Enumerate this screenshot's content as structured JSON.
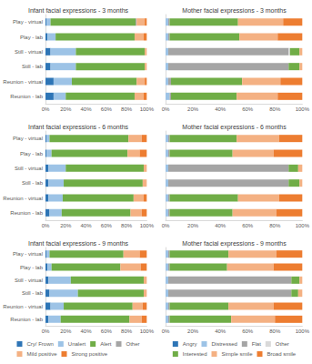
{
  "chart_data": [
    {
      "type": "bar",
      "title": "Infant facial expressions - 3 months",
      "orientation": "horizontal",
      "stacked": true,
      "grid": false,
      "categories": [
        "Play - virtual",
        "Play - lab",
        "Still - virtual",
        "Still - lab",
        "Reunion - virtual",
        "Reunion - lab"
      ],
      "xlim": [
        0,
        100
      ],
      "xticks": [
        {
          "value": 0,
          "label": "0%"
        },
        {
          "value": 20,
          "label": "20%"
        },
        {
          "value": 40,
          "label": "40%"
        },
        {
          "value": 60,
          "label": "60%"
        },
        {
          "value": 80,
          "label": "80%"
        },
        {
          "value": 100,
          "label": "100%"
        }
      ],
      "series": [
        {
          "name": "Cry/ Frown",
          "color": "#2e75b6",
          "values": [
            1,
            2,
            5,
            5,
            8,
            8
          ]
        },
        {
          "name": "Unalert",
          "color": "#9dc3e6",
          "values": [
            4,
            8,
            25,
            25,
            18,
            12
          ]
        },
        {
          "name": "Alert",
          "color": "#70ad47",
          "values": [
            84,
            78,
            68,
            68,
            64,
            68
          ]
        },
        {
          "name": "Other",
          "color": "#a5a5a5",
          "values": [
            1,
            0,
            0,
            0,
            0,
            0
          ]
        },
        {
          "name": "Mild positive",
          "color": "#f4b183",
          "values": [
            8,
            9,
            2,
            2,
            8,
            9
          ]
        },
        {
          "name": "Strong positive",
          "color": "#ed7d31",
          "values": [
            2,
            3,
            0,
            0,
            2,
            3
          ]
        }
      ]
    },
    {
      "type": "bar",
      "title": "Mother facial expressions - 3 months",
      "orientation": "horizontal",
      "stacked": true,
      "grid": false,
      "tick_labels": "x",
      "categories": [
        "Play - virtual",
        "Play - lab",
        "Still - virtual",
        "Still - lab",
        "Reunion - virtual",
        "Reunion - lab"
      ],
      "xlim": [
        0,
        100
      ],
      "xticks": [
        {
          "value": 0,
          "label": "0%"
        },
        {
          "value": 20,
          "label": "20%"
        },
        {
          "value": 40,
          "label": "40%"
        },
        {
          "value": 60,
          "label": "60%"
        },
        {
          "value": 80,
          "label": "80%"
        },
        {
          "value": 100,
          "label": "100%"
        }
      ],
      "series": [
        {
          "name": "Angry",
          "color": "#2e75b6",
          "values": [
            0,
            0,
            0,
            0,
            0,
            0
          ]
        },
        {
          "name": "Distressed",
          "color": "#9dc3e6",
          "values": [
            2,
            2,
            2,
            2,
            2,
            3
          ]
        },
        {
          "name": "Flat",
          "color": "#a5a5a5",
          "values": [
            1,
            1,
            88,
            88,
            2,
            1
          ]
        },
        {
          "name": "Other",
          "color": "#d9d9d9",
          "values": [
            0,
            0,
            1,
            0,
            0,
            0
          ]
        },
        {
          "name": "Interested",
          "color": "#70ad47",
          "values": [
            50,
            51,
            7,
            8,
            52,
            48
          ]
        },
        {
          "name": "Simple smile",
          "color": "#f4b183",
          "values": [
            33,
            28,
            2,
            2,
            28,
            30
          ]
        },
        {
          "name": "Broad smile",
          "color": "#ed7d31",
          "values": [
            14,
            18,
            0,
            0,
            16,
            18
          ]
        }
      ]
    },
    {
      "type": "bar",
      "title": "Infant facial expressions - 6 months",
      "orientation": "horizontal",
      "stacked": true,
      "grid": false,
      "categories": [
        "Play - virtual",
        "Play - lab",
        "Still - virtual",
        "Still - lab",
        "Reunion - virtual",
        "Reunion - lab"
      ],
      "xlim": [
        0,
        100
      ],
      "xticks": [
        {
          "value": 0,
          "label": "0%"
        },
        {
          "value": 20,
          "label": "20%"
        },
        {
          "value": 40,
          "label": "40%"
        },
        {
          "value": 60,
          "label": "60%"
        },
        {
          "value": 80,
          "label": "80%"
        },
        {
          "value": 100,
          "label": "100%"
        }
      ],
      "series": [
        {
          "name": "Cry/ Frown",
          "color": "#2e75b6",
          "values": [
            1,
            1,
            3,
            3,
            3,
            4
          ]
        },
        {
          "name": "Unalert",
          "color": "#9dc3e6",
          "values": [
            3,
            5,
            17,
            15,
            14,
            12
          ]
        },
        {
          "name": "Alert",
          "color": "#70ad47",
          "values": [
            78,
            75,
            77,
            78,
            70,
            68
          ]
        },
        {
          "name": "Other",
          "color": "#a5a5a5",
          "values": [
            0,
            0,
            0,
            0,
            0,
            0
          ]
        },
        {
          "name": "Mild positive",
          "color": "#f4b183",
          "values": [
            13,
            12,
            3,
            4,
            10,
            11
          ]
        },
        {
          "name": "Strong positive",
          "color": "#ed7d31",
          "values": [
            5,
            7,
            0,
            0,
            3,
            5
          ]
        }
      ]
    },
    {
      "type": "bar",
      "title": "Mother facial expressions - 6 months",
      "orientation": "horizontal",
      "stacked": true,
      "grid": false,
      "tick_labels": "x",
      "categories": [
        "Play - virtual",
        "Play - lab",
        "Still - virtual",
        "Still - lab",
        "Reunion - virtual",
        "Reunion - lab"
      ],
      "xlim": [
        0,
        100
      ],
      "xticks": [
        {
          "value": 0,
          "label": "0%"
        },
        {
          "value": 20,
          "label": "20%"
        },
        {
          "value": 40,
          "label": "40%"
        },
        {
          "value": 60,
          "label": "60%"
        },
        {
          "value": 80,
          "label": "80%"
        },
        {
          "value": 100,
          "label": "100%"
        }
      ],
      "series": [
        {
          "name": "Angry",
          "color": "#2e75b6",
          "values": [
            0,
            0,
            0,
            0,
            0,
            0
          ]
        },
        {
          "name": "Distressed",
          "color": "#9dc3e6",
          "values": [
            2,
            2,
            2,
            2,
            2,
            2
          ]
        },
        {
          "name": "Flat",
          "color": "#a5a5a5",
          "values": [
            1,
            1,
            88,
            88,
            1,
            1
          ]
        },
        {
          "name": "Other",
          "color": "#d9d9d9",
          "values": [
            0,
            0,
            0,
            0,
            0,
            0
          ]
        },
        {
          "name": "Interested",
          "color": "#70ad47",
          "values": [
            49,
            46,
            7,
            8,
            50,
            46
          ]
        },
        {
          "name": "Simple smile",
          "color": "#f4b183",
          "values": [
            31,
            30,
            3,
            2,
            30,
            32
          ]
        },
        {
          "name": "Broad smile",
          "color": "#ed7d31",
          "values": [
            17,
            21,
            0,
            0,
            17,
            19
          ]
        }
      ]
    },
    {
      "type": "bar",
      "title": "Infant facial expressions - 9 months",
      "orientation": "horizontal",
      "stacked": true,
      "grid": false,
      "legend": "bottom",
      "categories": [
        "Play - virtual",
        "Play - lab",
        "Still - virtual",
        "Still - lab",
        "Reunion - virtual",
        "Reunion - lab"
      ],
      "xlim": [
        0,
        100
      ],
      "xticks": [
        {
          "value": 0,
          "label": "0%"
        },
        {
          "value": 20,
          "label": "20%"
        },
        {
          "value": 40,
          "label": "40%"
        },
        {
          "value": 60,
          "label": "60%"
        },
        {
          "value": 80,
          "label": "80%"
        },
        {
          "value": 100,
          "label": "100%"
        }
      ],
      "series": [
        {
          "name": "Cry/ Frown",
          "color": "#2e75b6",
          "values": [
            1,
            2,
            3,
            4,
            5,
            3
          ]
        },
        {
          "name": "Unalert",
          "color": "#9dc3e6",
          "values": [
            3,
            4,
            22,
            28,
            13,
            12
          ]
        },
        {
          "name": "Alert",
          "color": "#70ad47",
          "values": [
            73,
            68,
            72,
            65,
            68,
            68
          ]
        },
        {
          "name": "Other",
          "color": "#a5a5a5",
          "values": [
            0,
            0,
            0,
            0,
            0,
            0
          ]
        },
        {
          "name": "Mild positive",
          "color": "#f4b183",
          "values": [
            16,
            20,
            3,
            3,
            10,
            12
          ]
        },
        {
          "name": "Strong positive",
          "color": "#ed7d31",
          "values": [
            7,
            6,
            0,
            0,
            4,
            5
          ]
        }
      ]
    },
    {
      "type": "bar",
      "title": "Mother facial expressions - 9 months",
      "orientation": "horizontal",
      "stacked": true,
      "grid": false,
      "tick_labels": "x",
      "legend": "bottom",
      "categories": [
        "Play - virtual",
        "Play - lab",
        "Still - virtual",
        "Still - lab",
        "Reunion - virtual",
        "Reunion - lab"
      ],
      "xlim": [
        0,
        100
      ],
      "xticks": [
        {
          "value": 0,
          "label": "0%"
        },
        {
          "value": 20,
          "label": "20%"
        },
        {
          "value": 40,
          "label": "40%"
        },
        {
          "value": 60,
          "label": "60%"
        },
        {
          "value": 80,
          "label": "80%"
        },
        {
          "value": 100,
          "label": "100%"
        }
      ],
      "series": [
        {
          "name": "Angry",
          "color": "#2e75b6",
          "values": [
            0,
            0,
            0,
            0,
            0,
            0
          ]
        },
        {
          "name": "Distressed",
          "color": "#9dc3e6",
          "values": [
            2,
            2,
            2,
            2,
            2,
            2
          ]
        },
        {
          "name": "Flat",
          "color": "#a5a5a5",
          "values": [
            1,
            1,
            90,
            90,
            1,
            1
          ]
        },
        {
          "name": "Other",
          "color": "#d9d9d9",
          "values": [
            0,
            0,
            0,
            0,
            0,
            0
          ]
        },
        {
          "name": "Interested",
          "color": "#70ad47",
          "values": [
            43,
            42,
            6,
            5,
            43,
            45
          ]
        },
        {
          "name": "Simple smile",
          "color": "#f4b183",
          "values": [
            35,
            34,
            2,
            3,
            33,
            32
          ]
        },
        {
          "name": "Broad smile",
          "color": "#ed7d31",
          "values": [
            19,
            21,
            0,
            0,
            21,
            20
          ]
        }
      ]
    }
  ]
}
